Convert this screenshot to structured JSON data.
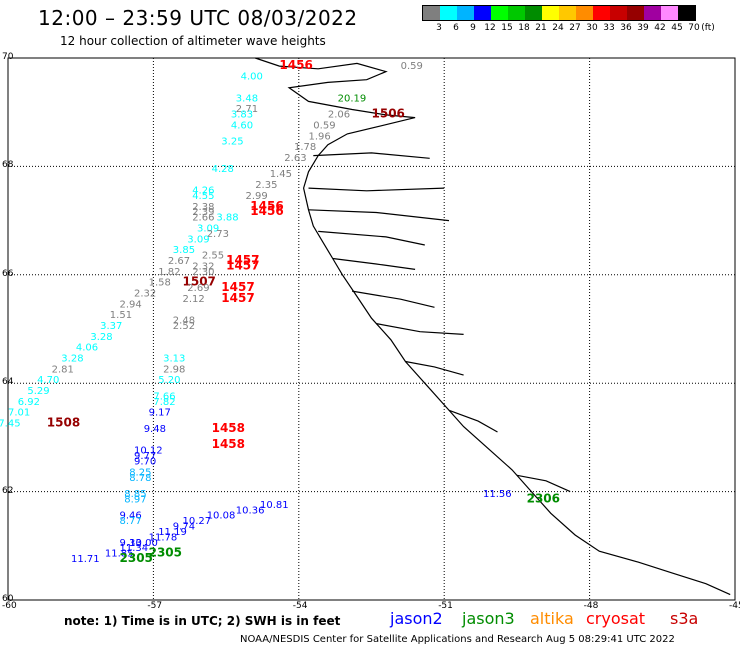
{
  "title": "12:00 – 23:59 UTC 08/03/2022",
  "subtitle": "12 hour collection of altimeter wave heights",
  "scale": {
    "unit_label": "(ft)",
    "items": [
      {
        "label": "3",
        "color": "#7f7f7f"
      },
      {
        "label": "6",
        "color": "#00ffff"
      },
      {
        "label": "9",
        "color": "#00b4ff"
      },
      {
        "label": "12",
        "color": "#0000ff"
      },
      {
        "label": "15",
        "color": "#00ff00"
      },
      {
        "label": "18",
        "color": "#00c800"
      },
      {
        "label": "21",
        "color": "#008c00"
      },
      {
        "label": "24",
        "color": "#ffff00"
      },
      {
        "label": "27",
        "color": "#ffc800"
      },
      {
        "label": "30",
        "color": "#ff8c00"
      },
      {
        "label": "33",
        "color": "#ff0000"
      },
      {
        "label": "36",
        "color": "#c80000"
      },
      {
        "label": "39",
        "color": "#960000"
      },
      {
        "label": "42",
        "color": "#a000a0"
      },
      {
        "label": "45",
        "color": "#ff88ff"
      },
      {
        "label": "70",
        "color": "#000000"
      }
    ]
  },
  "map": {
    "lon_range": [
      -60,
      -45
    ],
    "lat_range": [
      60,
      70
    ],
    "lon_ticks": [
      "-60",
      "-57",
      "-54",
      "-51",
      "-48",
      "-45"
    ],
    "lat_ticks": [
      "70",
      "68",
      "66",
      "64",
      "62",
      "60"
    ],
    "coastline": "Greenland west coast (black outline)"
  },
  "labels": [
    {
      "text": "1456",
      "lon": -54.4,
      "lat": 69.8,
      "color": "#ff0000",
      "bold": true
    },
    {
      "text": "0.59",
      "lon": -51.9,
      "lat": 69.8,
      "color": "#7f7f7f"
    },
    {
      "text": "4.00",
      "lon": -55.2,
      "lat": 69.6,
      "color": "#00ffff"
    },
    {
      "text": "20.19",
      "lon": -53.2,
      "lat": 69.2,
      "color": "#008c00"
    },
    {
      "text": "3.48",
      "lon": -55.3,
      "lat": 69.2,
      "color": "#00ffff"
    },
    {
      "text": "2.71",
      "lon": -55.3,
      "lat": 69.0,
      "color": "#7f7f7f"
    },
    {
      "text": "2.06",
      "lon": -53.4,
      "lat": 68.9,
      "color": "#7f7f7f"
    },
    {
      "text": "1506",
      "lon": -52.5,
      "lat": 68.9,
      "color": "#960000",
      "bold": true
    },
    {
      "text": "3.83",
      "lon": -55.4,
      "lat": 68.9,
      "color": "#00ffff"
    },
    {
      "text": "0.59",
      "lon": -53.7,
      "lat": 68.7,
      "color": "#7f7f7f"
    },
    {
      "text": "4.60",
      "lon": -55.4,
      "lat": 68.7,
      "color": "#00ffff"
    },
    {
      "text": "1.96",
      "lon": -53.8,
      "lat": 68.5,
      "color": "#7f7f7f"
    },
    {
      "text": "3.25",
      "lon": -55.6,
      "lat": 68.4,
      "color": "#00ffff"
    },
    {
      "text": "1.78",
      "lon": -54.1,
      "lat": 68.3,
      "color": "#7f7f7f"
    },
    {
      "text": "2.63",
      "lon": -54.3,
      "lat": 68.1,
      "color": "#7f7f7f"
    },
    {
      "text": "4.28",
      "lon": -55.8,
      "lat": 67.9,
      "color": "#00ffff"
    },
    {
      "text": "1.45",
      "lon": -54.6,
      "lat": 67.8,
      "color": "#7f7f7f"
    },
    {
      "text": "2.35",
      "lon": -54.9,
      "lat": 67.6,
      "color": "#7f7f7f"
    },
    {
      "text": "4.26",
      "lon": -56.2,
      "lat": 67.5,
      "color": "#00ffff"
    },
    {
      "text": "2.99",
      "lon": -55.1,
      "lat": 67.4,
      "color": "#7f7f7f"
    },
    {
      "text": "4.55",
      "lon": -56.2,
      "lat": 67.4,
      "color": "#00ffff"
    },
    {
      "text": "1456",
      "lon": -55.0,
      "lat": 67.2,
      "color": "#ff0000",
      "bold": true
    },
    {
      "text": "2.38",
      "lon": -56.2,
      "lat": 67.2,
      "color": "#7f7f7f"
    },
    {
      "text": "1456",
      "lon": -55.0,
      "lat": 67.1,
      "color": "#ff0000",
      "bold": true
    },
    {
      "text": "2.39",
      "lon": -56.2,
      "lat": 67.1,
      "color": "#7f7f7f"
    },
    {
      "text": "3.88",
      "lon": -55.7,
      "lat": 67.0,
      "color": "#00ffff"
    },
    {
      "text": "2.66",
      "lon": -56.2,
      "lat": 67.0,
      "color": "#7f7f7f"
    },
    {
      "text": "3.09",
      "lon": -56.1,
      "lat": 66.8,
      "color": "#00ffff"
    },
    {
      "text": "2.73",
      "lon": -55.9,
      "lat": 66.7,
      "color": "#7f7f7f"
    },
    {
      "text": "3.09",
      "lon": -56.3,
      "lat": 66.6,
      "color": "#00ffff"
    },
    {
      "text": "3.85",
      "lon": -56.6,
      "lat": 66.4,
      "color": "#00ffff"
    },
    {
      "text": "2.55",
      "lon": -56.0,
      "lat": 66.3,
      "color": "#7f7f7f"
    },
    {
      "text": "2.67",
      "lon": -56.7,
      "lat": 66.2,
      "color": "#7f7f7f"
    },
    {
      "text": "1457",
      "lon": -55.5,
      "lat": 66.2,
      "color": "#ff0000",
      "bold": true
    },
    {
      "text": "2.32",
      "lon": -56.2,
      "lat": 66.1,
      "color": "#7f7f7f"
    },
    {
      "text": "1457",
      "lon": -55.5,
      "lat": 66.1,
      "color": "#ff0000",
      "bold": true
    },
    {
      "text": "1.82",
      "lon": -56.9,
      "lat": 66.0,
      "color": "#7f7f7f"
    },
    {
      "text": "2.30",
      "lon": -56.2,
      "lat": 66.0,
      "color": "#7f7f7f"
    },
    {
      "text": "1.58",
      "lon": -57.1,
      "lat": 65.8,
      "color": "#7f7f7f"
    },
    {
      "text": "1507",
      "lon": -56.4,
      "lat": 65.8,
      "color": "#960000",
      "bold": true
    },
    {
      "text": "2.69",
      "lon": -56.3,
      "lat": 65.7,
      "color": "#7f7f7f"
    },
    {
      "text": "1457",
      "lon": -55.6,
      "lat": 65.7,
      "color": "#ff0000",
      "bold": true
    },
    {
      "text": "2.32",
      "lon": -57.4,
      "lat": 65.6,
      "color": "#7f7f7f"
    },
    {
      "text": "2.12",
      "lon": -56.4,
      "lat": 65.5,
      "color": "#7f7f7f"
    },
    {
      "text": "1457",
      "lon": -55.6,
      "lat": 65.5,
      "color": "#ff0000",
      "bold": true
    },
    {
      "text": "2.94",
      "lon": -57.7,
      "lat": 65.4,
      "color": "#7f7f7f"
    },
    {
      "text": "1.51",
      "lon": -57.9,
      "lat": 65.2,
      "color": "#7f7f7f"
    },
    {
      "text": "2.48",
      "lon": -56.6,
      "lat": 65.1,
      "color": "#7f7f7f"
    },
    {
      "text": "3.37",
      "lon": -58.1,
      "lat": 65.0,
      "color": "#00ffff"
    },
    {
      "text": "2.52",
      "lon": -56.6,
      "lat": 65.0,
      "color": "#7f7f7f"
    },
    {
      "text": "3.28",
      "lon": -58.3,
      "lat": 64.8,
      "color": "#00ffff"
    },
    {
      "text": "4.06",
      "lon": -58.6,
      "lat": 64.6,
      "color": "#00ffff"
    },
    {
      "text": "3.28",
      "lon": -58.9,
      "lat": 64.4,
      "color": "#00ffff"
    },
    {
      "text": "3.13",
      "lon": -56.8,
      "lat": 64.4,
      "color": "#00ffff"
    },
    {
      "text": "2.81",
      "lon": -59.1,
      "lat": 64.2,
      "color": "#7f7f7f"
    },
    {
      "text": "2.98",
      "lon": -56.8,
      "lat": 64.2,
      "color": "#7f7f7f"
    },
    {
      "text": "4.70",
      "lon": -59.4,
      "lat": 64.0,
      "color": "#00ffff"
    },
    {
      "text": "5.20",
      "lon": -56.9,
      "lat": 64.0,
      "color": "#00ffff"
    },
    {
      "text": "5.29",
      "lon": -59.6,
      "lat": 63.8,
      "color": "#00ffff"
    },
    {
      "text": "7.66",
      "lon": -57.0,
      "lat": 63.7,
      "color": "#00ffff"
    },
    {
      "text": "6.92",
      "lon": -59.8,
      "lat": 63.6,
      "color": "#00ffff"
    },
    {
      "text": "7.82",
      "lon": -57.0,
      "lat": 63.6,
      "color": "#00ffff"
    },
    {
      "text": "7.01",
      "lon": -60.0,
      "lat": 63.4,
      "color": "#00ffff"
    },
    {
      "text": "9.17",
      "lon": -57.1,
      "lat": 63.4,
      "color": "#0000ff"
    },
    {
      "text": "7.45",
      "lon": -60.2,
      "lat": 63.2,
      "color": "#00ffff"
    },
    {
      "text": "1508",
      "lon": -59.2,
      "lat": 63.2,
      "color": "#960000",
      "bold": true
    },
    {
      "text": "9.48",
      "lon": -57.2,
      "lat": 63.1,
      "color": "#0000ff"
    },
    {
      "text": "1458",
      "lon": -55.8,
      "lat": 63.1,
      "color": "#ff0000",
      "bold": true
    },
    {
      "text": "1458",
      "lon": -55.8,
      "lat": 62.8,
      "color": "#ff0000",
      "bold": true
    },
    {
      "text": "10.12",
      "lon": -57.4,
      "lat": 62.7,
      "color": "#0000ff"
    },
    {
      "text": "9.77",
      "lon": -57.4,
      "lat": 62.6,
      "color": "#0000ff"
    },
    {
      "text": "9.70",
      "lon": -57.4,
      "lat": 62.5,
      "color": "#0000ff"
    },
    {
      "text": "8.25",
      "lon": -57.5,
      "lat": 62.3,
      "color": "#00b4ff"
    },
    {
      "text": "8.78",
      "lon": -57.5,
      "lat": 62.2,
      "color": "#00b4ff"
    },
    {
      "text": "11.56",
      "lon": -50.2,
      "lat": 61.9,
      "color": "#0000ff"
    },
    {
      "text": "2306",
      "lon": -49.3,
      "lat": 61.8,
      "color": "#008c00",
      "bold": true
    },
    {
      "text": "8.85",
      "lon": -57.6,
      "lat": 61.9,
      "color": "#00b4ff"
    },
    {
      "text": "10.81",
      "lon": -54.8,
      "lat": 61.7,
      "color": "#0000ff"
    },
    {
      "text": "8.97",
      "lon": -57.6,
      "lat": 61.8,
      "color": "#00b4ff"
    },
    {
      "text": "10.36",
      "lon": -55.3,
      "lat": 61.6,
      "color": "#0000ff"
    },
    {
      "text": "10.08",
      "lon": -55.9,
      "lat": 61.5,
      "color": "#0000ff"
    },
    {
      "text": "9.46",
      "lon": -57.7,
      "lat": 61.5,
      "color": "#0000ff"
    },
    {
      "text": "10.27",
      "lon": -56.4,
      "lat": 61.4,
      "color": "#0000ff"
    },
    {
      "text": "8.77",
      "lon": -57.7,
      "lat": 61.4,
      "color": "#00b4ff"
    },
    {
      "text": "9.74",
      "lon": -56.6,
      "lat": 61.3,
      "color": "#0000ff"
    },
    {
      "text": "11.19",
      "lon": -56.9,
      "lat": 61.2,
      "color": "#0000ff"
    },
    {
      "text": "11.78",
      "lon": -57.1,
      "lat": 61.1,
      "color": "#0000ff"
    },
    {
      "text": "9.33",
      "lon": -57.7,
      "lat": 61.0,
      "color": "#0000ff"
    },
    {
      "text": "10.00",
      "lon": -57.5,
      "lat": 61.0,
      "color": "#0000ff"
    },
    {
      "text": "11.34",
      "lon": -57.7,
      "lat": 60.9,
      "color": "#0000ff"
    },
    {
      "text": "2305",
      "lon": -57.1,
      "lat": 60.8,
      "color": "#008c00",
      "bold": true
    },
    {
      "text": "11.85",
      "lon": -58.0,
      "lat": 60.8,
      "color": "#0000ff"
    },
    {
      "text": "2305",
      "lon": -57.7,
      "lat": 60.7,
      "color": "#008c00",
      "bold": true
    },
    {
      "text": "11.71",
      "lon": -58.7,
      "lat": 60.7,
      "color": "#0000ff"
    }
  ],
  "note": "note:  1) Time is in UTC;  2) SWH is in feet",
  "legend": [
    {
      "text": "jason2",
      "color": "#0000ff"
    },
    {
      "text": "jason3",
      "color": "#008c00"
    },
    {
      "text": "altika",
      "color": "#ff8c00"
    },
    {
      "text": "cryosat",
      "color": "#ff0000"
    },
    {
      "text": "s3a",
      "color": "#c80000"
    }
  ],
  "credit": "NOAA/NESDIS Center for Satellite Applications and Research    Aug  5 08:29:41 UTC 2022"
}
